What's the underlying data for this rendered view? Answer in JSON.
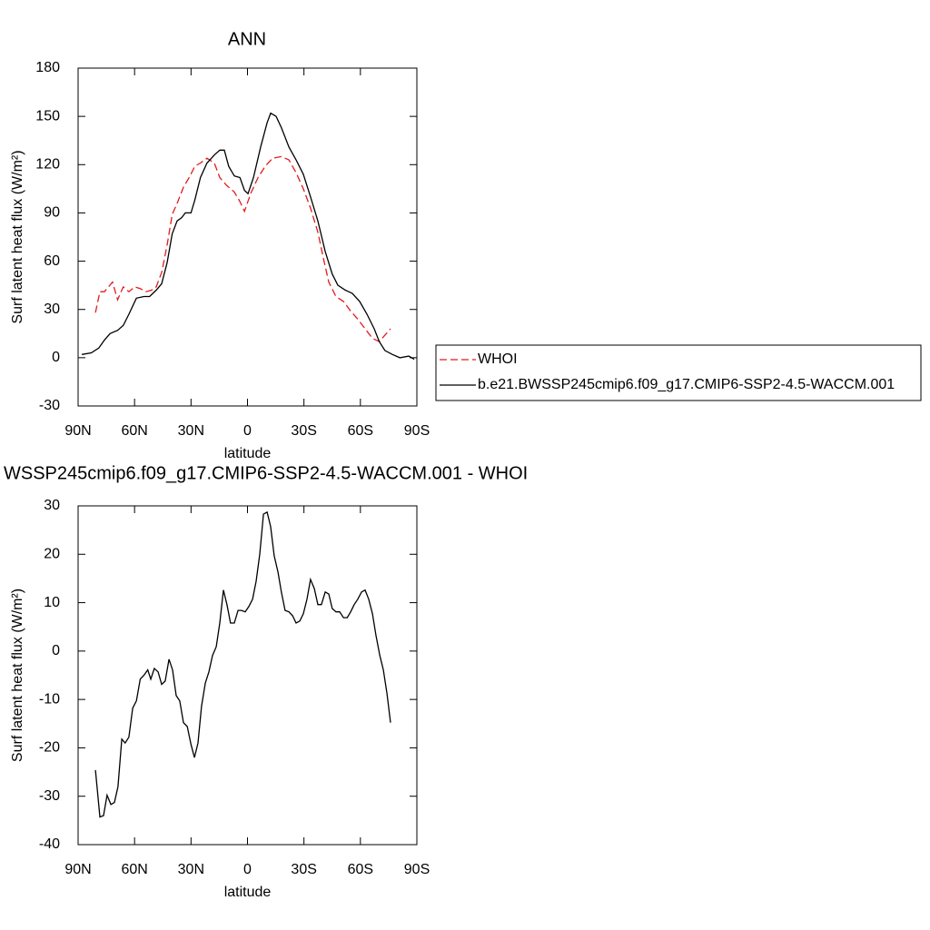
{
  "chart_data": [
    {
      "type": "line",
      "title": "ANN",
      "x_label": "latitude",
      "y_label": "Surf latent heat flux (W/m²)",
      "xlim": [
        90,
        -90
      ],
      "ylim": [
        -30,
        180
      ],
      "xticks": [
        {
          "value": 90,
          "label": "90N"
        },
        {
          "value": 60,
          "label": "60N"
        },
        {
          "value": 30,
          "label": "30N"
        },
        0,
        {
          "value": -30,
          "label": "30S"
        },
        {
          "value": -60,
          "label": "60S"
        },
        {
          "value": -90,
          "label": "90S"
        }
      ],
      "yticks": [
        -30,
        0,
        30,
        60,
        90,
        120,
        150,
        180
      ],
      "legend": "right",
      "series": [
        {
          "name": "WHOI",
          "color": "#e41a1c",
          "linestyle": "dashed",
          "x": [
            80.8,
            78.4,
            76,
            74.6,
            71.7,
            69,
            66,
            63,
            60,
            57,
            54,
            51,
            48.5,
            45.6,
            42.7,
            40,
            37,
            34,
            31,
            28,
            25,
            21.5,
            17.6,
            14.7,
            11,
            7,
            4,
            1.6,
            -1.7,
            -5.6,
            -9.4,
            -13.3,
            -18,
            -22,
            -25.8,
            -29.7,
            -33.5,
            -37.4,
            -40.3,
            -43.2,
            -47,
            -51,
            -54.8,
            -58.6,
            -62.5,
            -66.4,
            -70,
            -73,
            -76
          ],
          "values": [
            28,
            41,
            41,
            43,
            47,
            36,
            44,
            41,
            44,
            43,
            41,
            42,
            44,
            53,
            70,
            89,
            97,
            106,
            112,
            119,
            121,
            124,
            121,
            112,
            107,
            103,
            97,
            91,
            102,
            112,
            119,
            124,
            125,
            123,
            115,
            105,
            93,
            78,
            62,
            47,
            38,
            35,
            29,
            24,
            18,
            12,
            10,
            14,
            18
          ]
        },
        {
          "name": "b.e21.BWSSP245cmip6.f09_g17.CMIP6-SSP2-4.5-WACCM.001",
          "color": "#000000",
          "linestyle": "solid",
          "x": [
            88,
            83,
            79,
            76,
            73,
            69,
            66,
            63,
            59,
            55,
            52,
            48.5,
            45.6,
            42.7,
            40,
            37.4,
            35,
            33,
            30,
            28,
            25,
            21.5,
            17.6,
            14.7,
            12.3,
            10,
            7,
            4,
            1.6,
            -0.3,
            -3.2,
            -7,
            -10.4,
            -12.3,
            -15.2,
            -18,
            -22,
            -25.8,
            -29.7,
            -33.5,
            -37.4,
            -41.3,
            -45,
            -48,
            -52,
            -55.7,
            -59.6,
            -63.5,
            -67.3,
            -70,
            -73,
            -77,
            -81,
            -85.7,
            -88.6
          ],
          "values": [
            2,
            3,
            6,
            11,
            15,
            17,
            20,
            27,
            37,
            38,
            38,
            42,
            46,
            59,
            77,
            85,
            87,
            90,
            90,
            98,
            112,
            121,
            126,
            129,
            129,
            119,
            113,
            112,
            104,
            102,
            112,
            131,
            146,
            152,
            150,
            143,
            131,
            123,
            114,
            100,
            85,
            66,
            52,
            45,
            42,
            40,
            35,
            27,
            18,
            10,
            4.5,
            2,
            0,
            1,
            -1
          ]
        }
      ]
    },
    {
      "type": "line",
      "title": "WSSP245cmip6.f09_g17.CMIP6-SSP2-4.5-WACCM.001 - WHOI",
      "x_label": "latitude",
      "y_label": "Surf latent heat flux (W/m²)",
      "xlim": [
        90,
        -90
      ],
      "ylim": [
        -40,
        30
      ],
      "xticks": [
        {
          "value": 90,
          "label": "90N"
        },
        {
          "value": 60,
          "label": "60N"
        },
        {
          "value": 30,
          "label": "30N"
        },
        0,
        {
          "value": -30,
          "label": "30S"
        },
        {
          "value": -60,
          "label": "60S"
        },
        {
          "value": -90,
          "label": "90S"
        }
      ],
      "yticks": [
        -40,
        -30,
        -20,
        -10,
        0,
        10,
        20,
        30
      ],
      "series": [
        {
          "color": "#000000",
          "linestyle": "solid",
          "x": [
            80.8,
            78.4,
            76.5,
            74.6,
            72.6,
            70.7,
            68.8,
            66.8,
            65,
            63,
            61,
            59,
            57,
            55,
            53,
            51.4,
            49.5,
            47.5,
            45.6,
            43.7,
            41.7,
            39.8,
            37.9,
            36,
            34,
            32,
            30,
            28.2,
            26.3,
            24.4,
            22.4,
            20.5,
            18.6,
            16.6,
            14.7,
            12.8,
            10.9,
            9,
            7,
            5,
            3.2,
            1.2,
            -0.7,
            -2.7,
            -4.6,
            -6.5,
            -8.5,
            -10.4,
            -12.3,
            -14.2,
            -16.2,
            -18,
            -20,
            -22,
            -24,
            -25.8,
            -27.8,
            -29.7,
            -31.6,
            -33.5,
            -35.5,
            -37.4,
            -39.3,
            -41.3,
            -43.2,
            -45,
            -47,
            -49,
            -51,
            -53,
            -54.8,
            -56.7,
            -58.6,
            -60.6,
            -62.5,
            -64.4,
            -66.4,
            -68.3,
            -70.3,
            -72.2,
            -74.1,
            -76
          ],
          "values": [
            -24.6,
            -34.3,
            -34,
            -29.8,
            -31.7,
            -31.3,
            -28,
            -18.2,
            -19,
            -17.8,
            -11.8,
            -10.3,
            -5.8,
            -5,
            -3.9,
            -5.8,
            -3.6,
            -4.3,
            -6.9,
            -6.2,
            -1.7,
            -3.9,
            -9.2,
            -10.3,
            -14.8,
            -15.6,
            -19.3,
            -22,
            -19,
            -11.4,
            -6.6,
            -4.3,
            -0.9,
            0.9,
            5.8,
            12.6,
            9.6,
            5.8,
            5.8,
            8.4,
            8.4,
            8.1,
            9.2,
            10.7,
            14.4,
            20,
            28.3,
            28.7,
            25.7,
            19.7,
            16.3,
            12.2,
            8.4,
            8.1,
            7.3,
            5.8,
            6.2,
            7.7,
            10.7,
            14.8,
            12.9,
            9.6,
            9.6,
            12.2,
            11.8,
            8.8,
            8.1,
            8.1,
            6.9,
            6.9,
            8.1,
            9.6,
            10.7,
            12.2,
            12.6,
            10.7,
            7.7,
            3.2,
            -0.9,
            -3.9,
            -8.8,
            -14.8
          ]
        }
      ]
    }
  ]
}
